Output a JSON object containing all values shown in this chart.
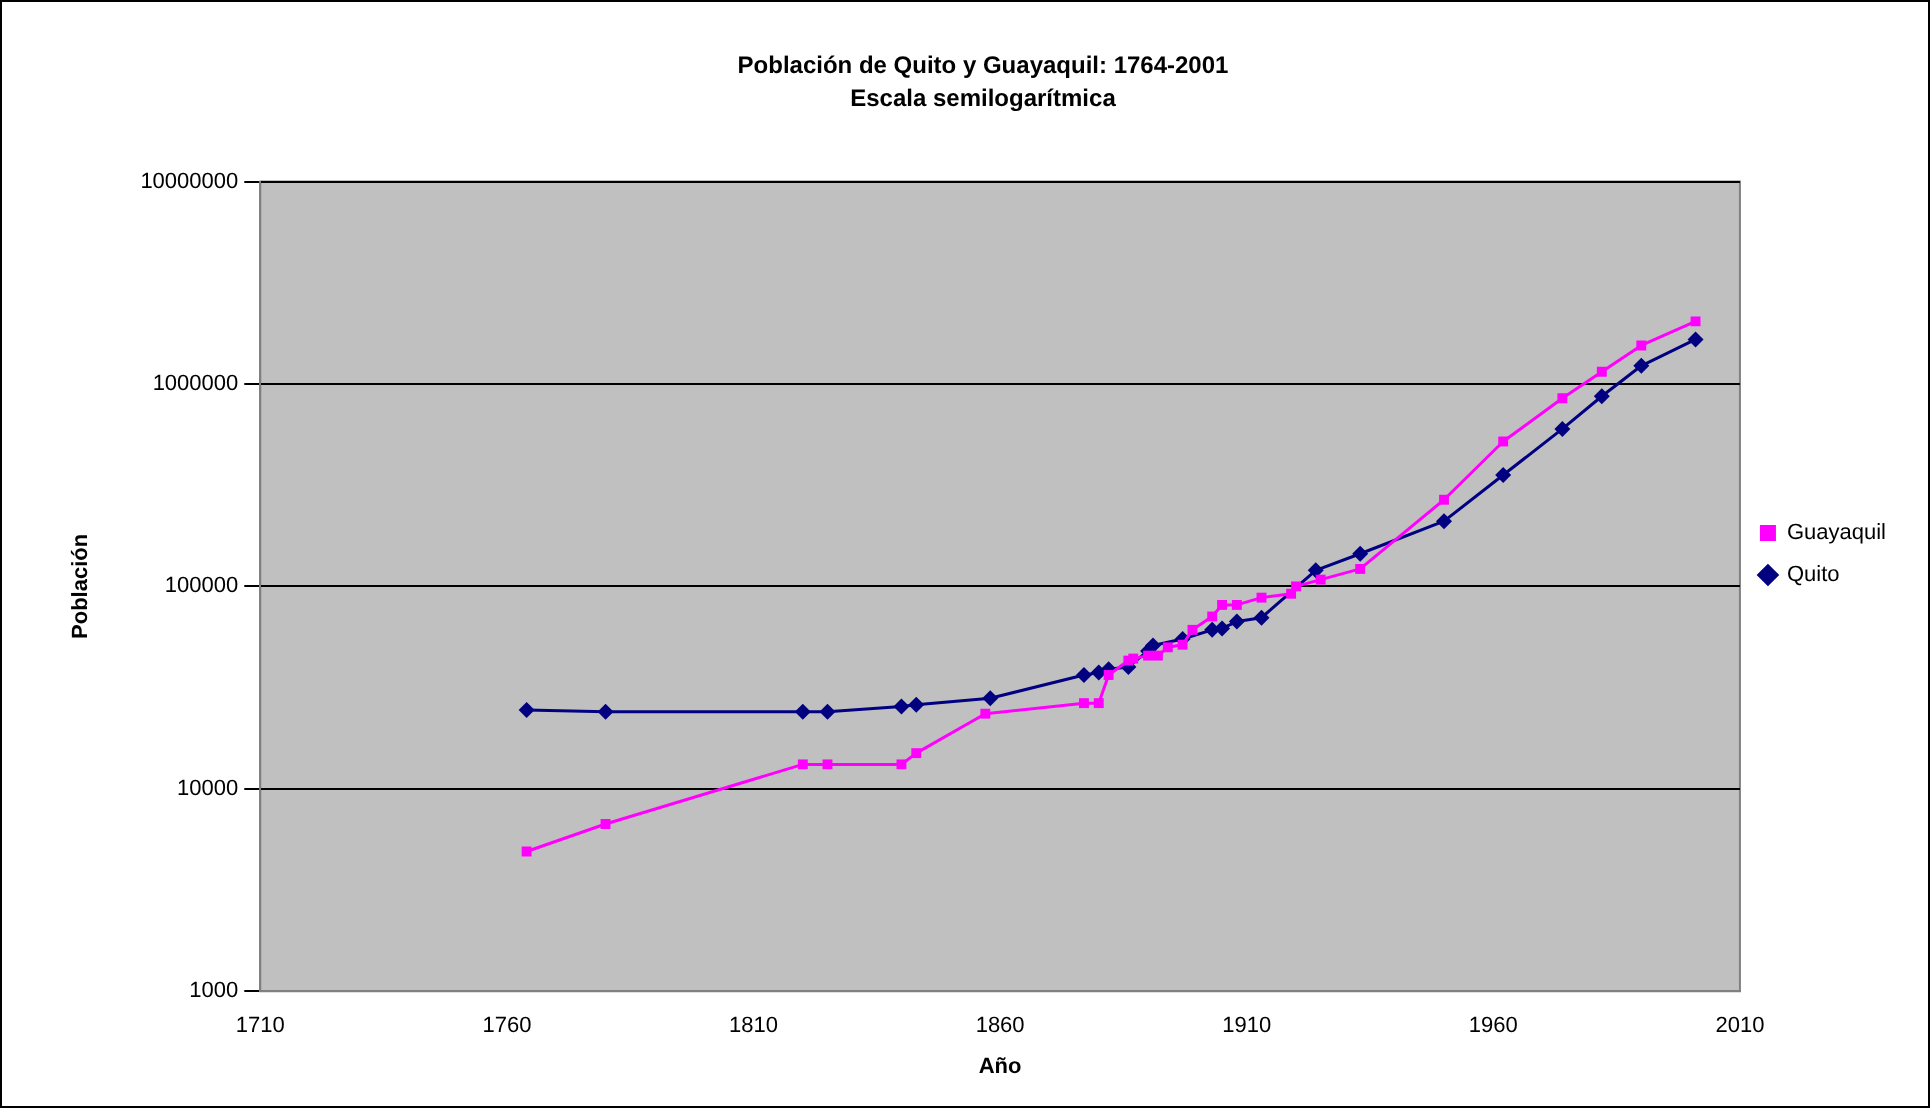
{
  "chart_data": {
    "type": "line",
    "title": "Población de Quito y Guayaquil: 1764-2001",
    "subtitle": "Escala semilogarítmica",
    "xlabel": "Año",
    "ylabel": "Población",
    "log": "y",
    "grid": "y",
    "legend": "right",
    "xlim": [
      1710,
      2010
    ],
    "xticks": [
      1710,
      1760,
      1810,
      1860,
      1910,
      1960,
      2010
    ],
    "ylim": [
      1000,
      10000000
    ],
    "yticks": [
      1000,
      10000,
      100000,
      1000000,
      10000000
    ],
    "series": [
      {
        "name": "Quito",
        "color": "#000080",
        "marker": "diamond",
        "x": [
          1764,
          1780,
          1820,
          1825,
          1840,
          1843,
          1858,
          1877,
          1880,
          1882,
          1886,
          1890,
          1891,
          1897,
          1903,
          1905,
          1908,
          1913,
          1924,
          1933,
          1950,
          1962,
          1974,
          1982,
          1990,
          2001
        ],
        "values": [
          24500,
          24000,
          24000,
          24000,
          25500,
          26000,
          28000,
          36500,
          37500,
          39000,
          40000,
          48000,
          51000,
          55000,
          61000,
          62000,
          67000,
          70000,
          120000,
          145000,
          210000,
          355000,
          600000,
          870000,
          1230000,
          1660000
        ]
      },
      {
        "name": "Guayaquil",
        "color": "#ff00ff",
        "marker": "square",
        "x": [
          1764,
          1780,
          1820,
          1825,
          1840,
          1843,
          1857,
          1877,
          1880,
          1882,
          1886,
          1887,
          1890,
          1892,
          1894,
          1897,
          1899,
          1903,
          1905,
          1908,
          1913,
          1919,
          1920,
          1925,
          1933,
          1950,
          1962,
          1974,
          1982,
          1990,
          2001
        ],
        "values": [
          4900,
          6700,
          13200,
          13200,
          13200,
          15000,
          23500,
          26500,
          26500,
          36500,
          43000,
          44000,
          45500,
          45500,
          50000,
          51500,
          61000,
          71000,
          81000,
          81000,
          88000,
          92000,
          100000,
          108000,
          122000,
          268000,
          520000,
          850000,
          1150000,
          1550000,
          2040000
        ]
      }
    ]
  }
}
